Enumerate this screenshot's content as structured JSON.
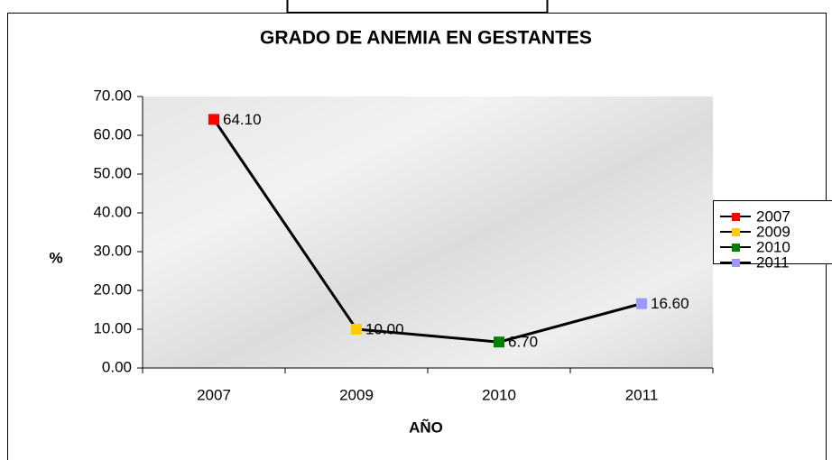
{
  "chart_data": {
    "type": "line",
    "title": "GRADO DE ANEMIA EN GESTANTES",
    "x_label": "AÑO",
    "y_label": "%",
    "categories": [
      "2007",
      "2009",
      "2010",
      "2011"
    ],
    "series": [
      {
        "color": "#000000",
        "marker_colors": [
          "#ff0000",
          "#ffcc00",
          "#008000",
          "#9999ff"
        ],
        "values": [
          64.1,
          10,
          6.7,
          16.6
        ],
        "value_labels": [
          "64.10",
          "10.00",
          "6.70",
          "16.60"
        ]
      }
    ],
    "ylim": [
      0,
      70
    ],
    "yticks": [
      {
        "value": 0,
        "label": "0.00"
      },
      {
        "value": 10,
        "label": "10.00"
      },
      {
        "value": 20,
        "label": "20.00"
      },
      {
        "value": 30,
        "label": "30.00"
      },
      {
        "value": 40,
        "label": "40.00"
      },
      {
        "value": 50,
        "label": "50.00"
      },
      {
        "value": 60,
        "label": "60.00"
      },
      {
        "value": 70,
        "label": "70.00"
      }
    ],
    "legend": "right"
  }
}
